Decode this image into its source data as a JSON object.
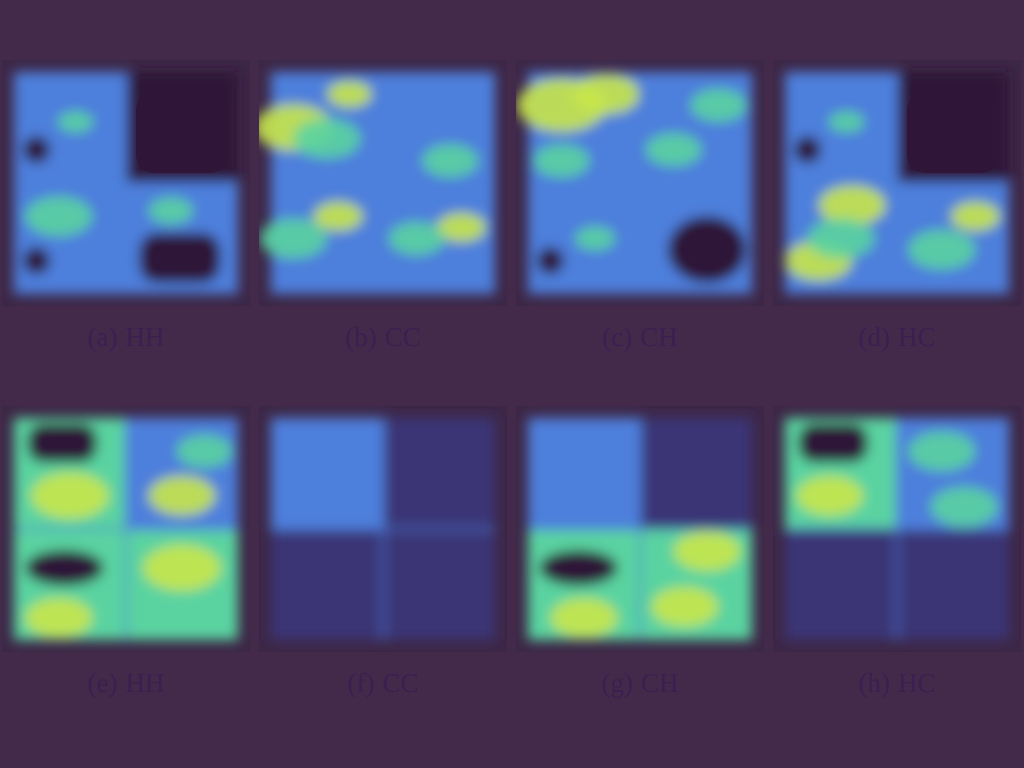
{
  "chart_data": {
    "type": "heatmap",
    "colors": {
      "background": "#43294a",
      "frame": "#3d2747",
      "empty": "#2f1638",
      "dark": "#3a3576",
      "mid": "#4d7fdc",
      "bright": "#5ad3a0",
      "peak": "#c8e64a"
    },
    "panels": [
      {
        "label": "(a)",
        "name": "HH",
        "quadrants": [
          {
            "base": "mid",
            "hole": "small",
            "blobs": [
              [
                0.55,
                0.45,
                0.16,
                "bright"
              ]
            ]
          },
          {
            "base": "empty"
          },
          {
            "base": "mid",
            "hole": "small",
            "blobs": [
              [
                0.4,
                0.3,
                0.3,
                "bright"
              ]
            ]
          },
          {
            "base": "mid",
            "hole": "bottom",
            "blobs": [
              [
                0.4,
                0.25,
                0.2,
                "bright"
              ]
            ]
          }
        ]
      },
      {
        "label": "(b)",
        "name": "CC",
        "quadrants": [
          {
            "base": "mid",
            "blobs": [
              [
                0.2,
                0.5,
                0.35,
                "peak"
              ],
              [
                0.7,
                0.2,
                0.2,
                "peak"
              ],
              [
                0.5,
                0.6,
                0.3,
                "bright"
              ]
            ]
          },
          {
            "base": "mid",
            "blobs": [
              [
                0.6,
                0.8,
                0.25,
                "bright"
              ]
            ]
          },
          {
            "base": "mid",
            "blobs": [
              [
                0.6,
                0.3,
                0.22,
                "peak"
              ],
              [
                0.2,
                0.5,
                0.3,
                "bright"
              ]
            ]
          },
          {
            "base": "mid",
            "blobs": [
              [
                0.7,
                0.4,
                0.22,
                "peak"
              ],
              [
                0.3,
                0.5,
                0.25,
                "bright"
              ]
            ]
          }
        ]
      },
      {
        "label": "(c)",
        "name": "CH",
        "quadrants": [
          {
            "base": "mid",
            "blobs": [
              [
                0.3,
                0.3,
                0.4,
                "peak"
              ],
              [
                0.7,
                0.2,
                0.3,
                "peak"
              ],
              [
                0.3,
                0.8,
                0.25,
                "bright"
              ]
            ]
          },
          {
            "base": "mid",
            "blobs": [
              [
                0.7,
                0.3,
                0.25,
                "bright"
              ],
              [
                0.3,
                0.7,
                0.25,
                "bright"
              ]
            ]
          },
          {
            "base": "mid",
            "hole": "small",
            "blobs": [
              [
                0.6,
                0.5,
                0.18,
                "bright"
              ]
            ]
          },
          {
            "base": "mid",
            "hole": "right"
          }
        ]
      },
      {
        "label": "(d)",
        "name": "HC",
        "quadrants": [
          {
            "base": "mid",
            "hole": "small",
            "blobs": [
              [
                0.55,
                0.45,
                0.16,
                "bright"
              ]
            ]
          },
          {
            "base": "empty"
          },
          {
            "base": "mid",
            "blobs": [
              [
                0.3,
                0.7,
                0.3,
                "peak"
              ],
              [
                0.6,
                0.2,
                0.3,
                "peak"
              ],
              [
                0.5,
                0.5,
                0.3,
                "bright"
              ]
            ]
          },
          {
            "base": "mid",
            "blobs": [
              [
                0.7,
                0.3,
                0.22,
                "peak"
              ],
              [
                0.4,
                0.6,
                0.3,
                "bright"
              ]
            ]
          }
        ]
      },
      {
        "label": "(e)",
        "name": "HH",
        "quadrants": [
          {
            "base": "bright",
            "hole": "top",
            "blobs": [
              [
                0.5,
                0.7,
                0.35,
                "peak"
              ]
            ]
          },
          {
            "base": "mid",
            "blobs": [
              [
                0.5,
                0.7,
                0.3,
                "peak"
              ],
              [
                0.7,
                0.3,
                0.25,
                "bright"
              ]
            ]
          },
          {
            "base": "bright",
            "hole": "mid",
            "blobs": [
              [
                0.4,
                0.8,
                0.3,
                "peak"
              ]
            ]
          },
          {
            "base": "bright",
            "blobs": [
              [
                0.5,
                0.35,
                0.35,
                "peak"
              ]
            ]
          }
        ]
      },
      {
        "label": "(f)",
        "name": "CC",
        "quadrants": [
          {
            "base": "mid"
          },
          {
            "base": "dark"
          },
          {
            "base": "dark"
          },
          {
            "base": "dark"
          }
        ]
      },
      {
        "label": "(g)",
        "name": "CH",
        "quadrants": [
          {
            "base": "mid"
          },
          {
            "base": "dark"
          },
          {
            "base": "bright",
            "hole": "mid",
            "blobs": [
              [
                0.5,
                0.8,
                0.3,
                "peak"
              ]
            ]
          },
          {
            "base": "bright",
            "blobs": [
              [
                0.6,
                0.2,
                0.3,
                "peak"
              ],
              [
                0.4,
                0.7,
                0.3,
                "peak"
              ]
            ]
          }
        ]
      },
      {
        "label": "(h)",
        "name": "HC",
        "quadrants": [
          {
            "base": "bright",
            "hole": "top",
            "blobs": [
              [
                0.4,
                0.7,
                0.3,
                "peak"
              ]
            ]
          },
          {
            "base": "mid",
            "blobs": [
              [
                0.4,
                0.3,
                0.3,
                "bright"
              ],
              [
                0.6,
                0.8,
                0.3,
                "bright"
              ]
            ]
          },
          {
            "base": "dark"
          },
          {
            "base": "dark"
          }
        ]
      }
    ]
  }
}
